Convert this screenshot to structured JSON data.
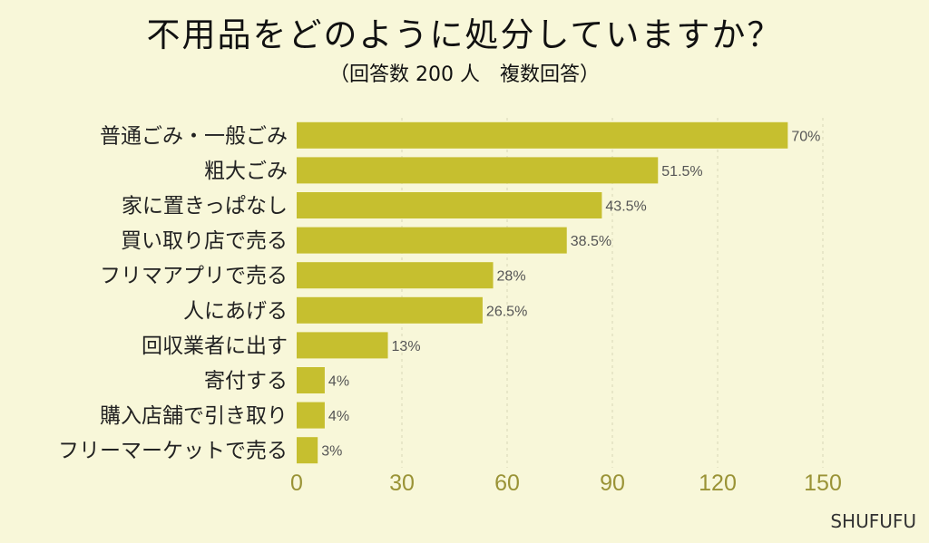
{
  "chart_data": {
    "type": "bar",
    "orientation": "horizontal",
    "title": "不用品をどのように処分していますか？",
    "subtitle": "（回答数 200 人　複数回答）",
    "categories": [
      "普通ごみ・一般ごみ",
      "粗大ごみ",
      "家に置きっぱなし",
      "買い取り店で売る",
      "フリマアプリで売る",
      "人にあげる",
      "回収業者に出す",
      "寄付する",
      "購入店舗で引き取り",
      "フリーマーケットで売る"
    ],
    "values": [
      140,
      103,
      87,
      77,
      56,
      53,
      26,
      8,
      8,
      6
    ],
    "value_labels": [
      "70%",
      "51.5%",
      "43.5%",
      "38.5%",
      "28%",
      "26.5%",
      "13%",
      "4%",
      "4%",
      "3%"
    ],
    "xlim": [
      0,
      150
    ],
    "xticks": [
      "0",
      "30",
      "60",
      "90",
      "120",
      "150"
    ],
    "xlabel": "",
    "ylabel": "",
    "grid": "vertical dashed",
    "colors": {
      "bar": "#c6bf2f",
      "axis_text": "#9a9336",
      "label": "#555555",
      "background": "#f8f7d9"
    }
  },
  "brand": "SHUFUFU"
}
